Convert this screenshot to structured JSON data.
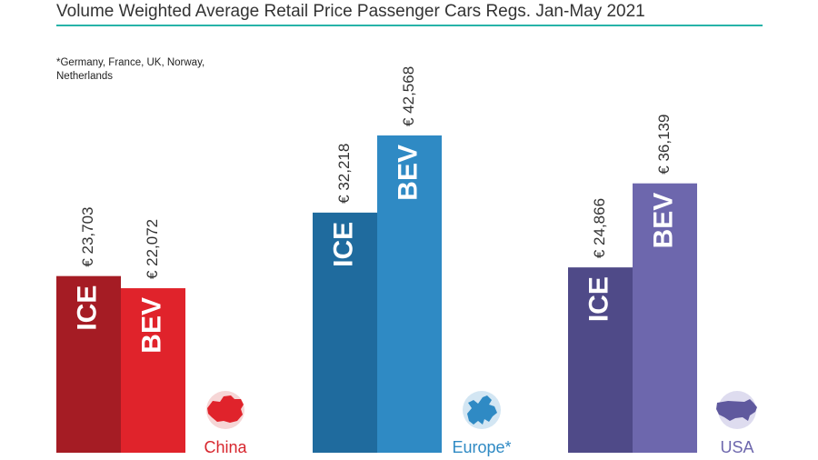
{
  "chart_data": {
    "type": "bar",
    "title": "Volume Weighted Average Retail Price Passenger Cars Regs. Jan-May 2021",
    "footnote": "*Germany, France, UK, Norway, Netherlands",
    "currency_prefix": "€ ",
    "series_names": [
      "ICE",
      "BEV"
    ],
    "ylim": [
      0,
      50000
    ],
    "groups": [
      {
        "region": "China",
        "colors": {
          "ICE": "#a51c24",
          "BEV": "#e0232b",
          "label": "#d7262d",
          "map": "#e0232b",
          "map_bg": "#f6d6d6"
        },
        "icon": "china-map-icon",
        "values": [
          23703,
          22072
        ],
        "value_labels": [
          "€ 23,703",
          "€ 22,072"
        ]
      },
      {
        "region": "Europe*",
        "colors": {
          "ICE": "#1f6b9e",
          "BEV": "#2f8ac4",
          "label": "#2f8ac4",
          "map": "#2f8ac4",
          "map_bg": "#d3e6f3"
        },
        "icon": "europe-map-icon",
        "values": [
          32218,
          42568
        ],
        "value_labels": [
          "€ 32,218",
          "€ 42,568"
        ]
      },
      {
        "region": "USA",
        "colors": {
          "ICE": "#4f4a88",
          "BEV": "#6d67ad",
          "label": "#6d67ad",
          "map": "#5f599e",
          "map_bg": "#dedcef"
        },
        "icon": "usa-map-icon",
        "values": [
          24866,
          36139
        ],
        "value_labels": [
          "€ 24,866",
          "€ 36,139"
        ]
      }
    ]
  },
  "colors": {
    "title_rule": "#27b3a8",
    "text": "#333333"
  }
}
